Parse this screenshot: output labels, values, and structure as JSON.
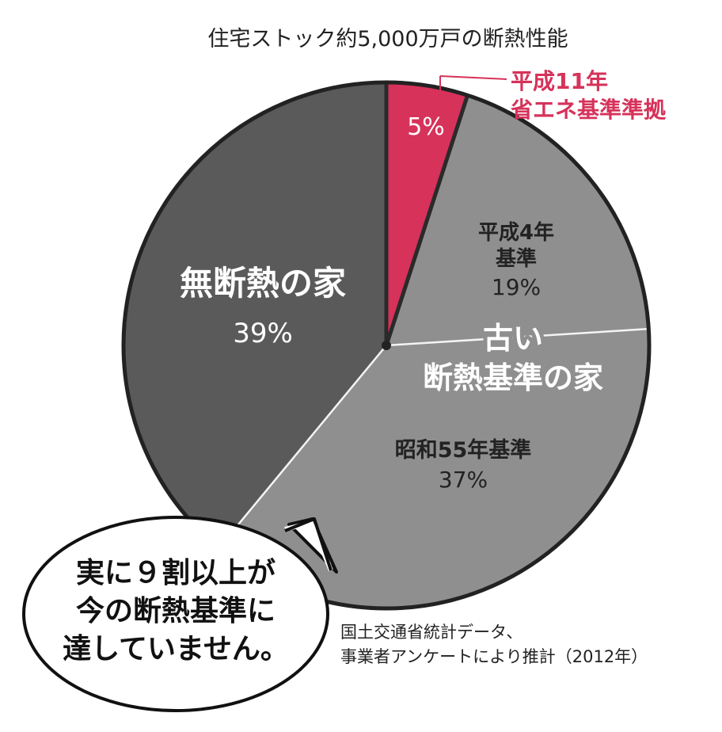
{
  "chart_data": {
    "type": "pie",
    "title": "住宅ストック約5,000万戸の断熱性能",
    "group_label": [
      "古い",
      "断熱基準の家"
    ],
    "slices": [
      {
        "label": [
          "平成11年",
          "省エネ基準準拠"
        ],
        "value": 5,
        "value_label": "5%",
        "color": "#d6325a"
      },
      {
        "label": [
          "平成4年",
          "基準"
        ],
        "value": 19,
        "value_label": "19%",
        "color": "#8f8f8f"
      },
      {
        "label": [
          "昭和55年基準"
        ],
        "value": 37,
        "value_label": "37%",
        "color": "#8f8f8f"
      },
      {
        "label": [
          "無断熱の家"
        ],
        "value": 39,
        "value_label": "39%",
        "color": "#5a5a5a"
      }
    ],
    "callout": [
      "実に９割以上が",
      "今の断熱基準に",
      "達していません。"
    ],
    "source": [
      "国土交通省統計データ、",
      "事業者アンケートにより推計（2012年）"
    ]
  }
}
